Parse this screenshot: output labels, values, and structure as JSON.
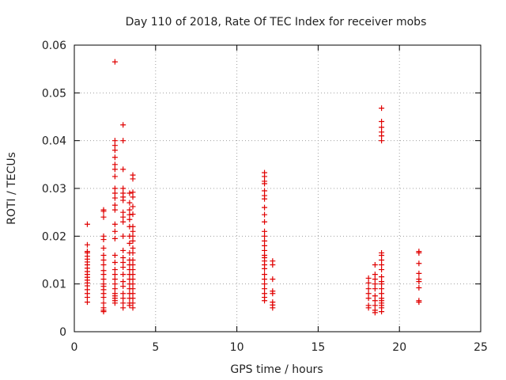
{
  "chart_data": {
    "type": "scatter",
    "title": "Day 110 of 2018, Rate Of TEC Index for receiver mobs",
    "xlabel": "GPS time / hours",
    "ylabel": "ROTI / TECUs",
    "xlim": [
      0,
      25
    ],
    "ylim": [
      0,
      0.06
    ],
    "xticks": [
      0,
      5,
      10,
      15,
      20,
      25
    ],
    "xtick_labels": [
      "0",
      "5",
      "10",
      "15",
      "20",
      "25"
    ],
    "yticks": [
      0,
      0.01,
      0.02,
      0.03,
      0.04,
      0.05,
      0.06
    ],
    "ytick_labels": [
      "0",
      "0.01",
      "0.02",
      "0.03",
      "0.04",
      "0.05",
      "0.06"
    ],
    "grid": true,
    "marker": "+",
    "color": "#e00000",
    "series": [
      {
        "name": "mobs",
        "x": [
          0.8,
          0.8,
          0.8,
          0.8,
          0.8,
          0.8,
          0.8,
          0.8,
          0.8,
          0.8,
          0.8,
          0.8,
          0.8,
          0.8,
          0.8,
          0.8,
          0.8,
          0.8,
          0.8,
          1.8,
          1.8,
          1.8,
          1.8,
          1.8,
          1.8,
          1.8,
          1.8,
          1.8,
          1.8,
          1.8,
          1.8,
          1.8,
          1.8,
          1.8,
          1.8,
          1.8,
          1.8,
          1.8,
          1.8,
          1.8,
          2.5,
          2.5,
          2.5,
          2.5,
          2.5,
          2.5,
          2.5,
          2.5,
          2.5,
          2.5,
          2.5,
          2.5,
          2.5,
          2.5,
          2.5,
          2.5,
          2.5,
          2.5,
          2.5,
          2.5,
          2.5,
          2.5,
          2.5,
          2.5,
          2.5,
          2.5,
          2.5,
          2.5,
          3.0,
          3.0,
          3.0,
          3.0,
          3.0,
          3.0,
          3.0,
          3.0,
          3.0,
          3.0,
          3.0,
          3.0,
          3.0,
          3.0,
          3.0,
          3.0,
          3.0,
          3.0,
          3.0,
          3.0,
          3.0,
          3.0,
          3.4,
          3.4,
          3.4,
          3.4,
          3.4,
          3.4,
          3.4,
          3.4,
          3.4,
          3.4,
          3.4,
          3.4,
          3.4,
          3.4,
          3.4,
          3.4,
          3.4,
          3.4,
          3.4,
          3.4,
          3.6,
          3.6,
          3.6,
          3.6,
          3.6,
          3.6,
          3.6,
          3.6,
          3.6,
          3.6,
          3.6,
          3.6,
          3.6,
          3.6,
          3.6,
          3.6,
          3.6,
          3.6,
          3.6,
          3.6,
          3.6,
          3.6,
          3.6,
          11.7,
          11.7,
          11.7,
          11.7,
          11.7,
          11.7,
          11.7,
          11.7,
          11.7,
          11.7,
          11.7,
          11.7,
          11.7,
          11.7,
          11.7,
          11.7,
          11.7,
          11.7,
          11.7,
          11.7,
          11.7,
          11.7,
          11.7,
          11.7,
          11.7,
          11.7,
          11.7,
          12.2,
          12.2,
          12.2,
          12.2,
          12.2,
          12.2,
          12.2,
          12.2,
          18.1,
          18.1,
          18.1,
          18.1,
          18.1,
          18.1,
          18.1,
          18.5,
          18.5,
          18.5,
          18.5,
          18.5,
          18.5,
          18.5,
          18.5,
          18.5,
          18.5,
          18.9,
          18.9,
          18.9,
          18.9,
          18.9,
          18.9,
          18.9,
          18.9,
          18.9,
          18.9,
          18.9,
          18.9,
          18.9,
          18.9,
          18.9,
          18.9,
          18.9,
          18.9,
          18.9,
          18.9,
          18.9,
          18.9,
          21.2,
          21.2,
          21.2,
          21.2,
          21.2,
          21.2,
          21.2,
          21.2,
          21.2
        ],
        "y": [
          0.0225,
          0.0182,
          0.0168,
          0.0165,
          0.0158,
          0.0152,
          0.0146,
          0.014,
          0.0133,
          0.0126,
          0.012,
          0.0114,
          0.0108,
          0.0102,
          0.0096,
          0.0088,
          0.008,
          0.0072,
          0.0062,
          0.0255,
          0.0252,
          0.024,
          0.02,
          0.0193,
          0.0175,
          0.016,
          0.015,
          0.014,
          0.0128,
          0.012,
          0.011,
          0.01,
          0.0095,
          0.0088,
          0.008,
          0.0072,
          0.006,
          0.005,
          0.0045,
          0.0042,
          0.0565,
          0.04,
          0.039,
          0.038,
          0.0365,
          0.035,
          0.034,
          0.0325,
          0.03,
          0.029,
          0.028,
          0.0265,
          0.0255,
          0.0225,
          0.021,
          0.0195,
          0.016,
          0.0145,
          0.013,
          0.012,
          0.011,
          0.01,
          0.009,
          0.008,
          0.0075,
          0.007,
          0.0065,
          0.006,
          0.0433,
          0.04,
          0.034,
          0.03,
          0.029,
          0.0282,
          0.0275,
          0.025,
          0.024,
          0.023,
          0.02,
          0.017,
          0.0155,
          0.0145,
          0.0135,
          0.012,
          0.0105,
          0.0095,
          0.008,
          0.007,
          0.006,
          0.005,
          0.029,
          0.027,
          0.0255,
          0.0245,
          0.0235,
          0.022,
          0.02,
          0.0185,
          0.0165,
          0.015,
          0.014,
          0.013,
          0.012,
          0.011,
          0.01,
          0.009,
          0.008,
          0.007,
          0.006,
          0.0055,
          0.0328,
          0.032,
          0.0292,
          0.0282,
          0.0262,
          0.0246,
          0.022,
          0.021,
          0.02,
          0.019,
          0.0175,
          0.0165,
          0.015,
          0.014,
          0.013,
          0.012,
          0.011,
          0.01,
          0.009,
          0.008,
          0.007,
          0.006,
          0.005,
          0.0333,
          0.0325,
          0.0315,
          0.031,
          0.0295,
          0.0285,
          0.0278,
          0.026,
          0.0245,
          0.023,
          0.021,
          0.02,
          0.019,
          0.018,
          0.017,
          0.016,
          0.0155,
          0.0148,
          0.014,
          0.0132,
          0.012,
          0.011,
          0.01,
          0.009,
          0.008,
          0.0072,
          0.0065,
          0.0148,
          0.014,
          0.011,
          0.0085,
          0.008,
          0.0062,
          0.0056,
          0.005,
          0.0112,
          0.0102,
          0.009,
          0.008,
          0.007,
          0.0055,
          0.005,
          0.014,
          0.012,
          0.011,
          0.01,
          0.009,
          0.0075,
          0.0065,
          0.0055,
          0.0045,
          0.004,
          0.0468,
          0.044,
          0.0428,
          0.0418,
          0.041,
          0.04,
          0.0165,
          0.016,
          0.015,
          0.014,
          0.013,
          0.0115,
          0.0105,
          0.01,
          0.009,
          0.008,
          0.007,
          0.0065,
          0.006,
          0.0055,
          0.005,
          0.0042,
          0.0168,
          0.0165,
          0.0143,
          0.0122,
          0.011,
          0.0105,
          0.0092,
          0.0065,
          0.0062
        ]
      }
    ]
  }
}
